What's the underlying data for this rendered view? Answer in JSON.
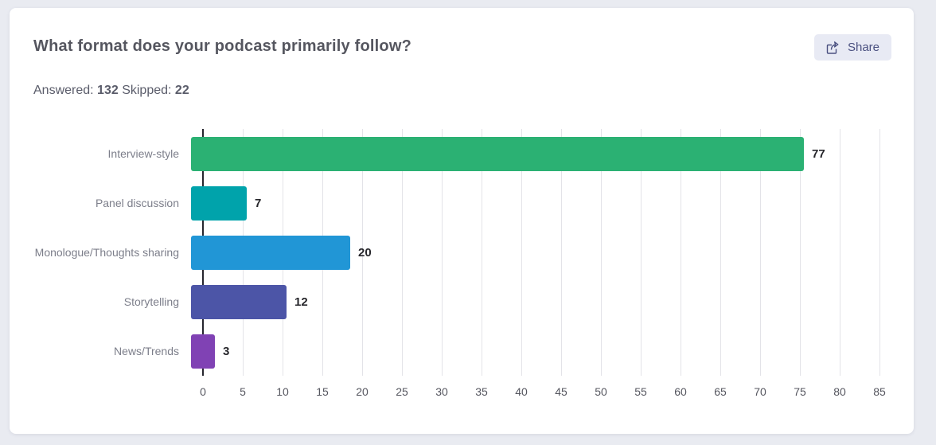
{
  "page": {
    "background_color": "#e9ebf1",
    "card_background": "#ffffff"
  },
  "header": {
    "title": "What format does your podcast primarily follow?",
    "share_label": "Share"
  },
  "stats": {
    "answered_label": "Answered:",
    "answered_value": "132",
    "skipped_label": "Skipped:",
    "skipped_value": "22"
  },
  "chart_data": {
    "type": "bar",
    "orientation": "horizontal",
    "categories": [
      "Interview-style",
      "Panel discussion",
      "Monologue/Thoughts sharing",
      "Storytelling",
      "News/Trends"
    ],
    "values": [
      77,
      7,
      20,
      12,
      3
    ],
    "bar_colors": [
      "#2bb173",
      "#00a3ab",
      "#2196d6",
      "#4c55a7",
      "#8042b4"
    ],
    "value_labels": true,
    "xlim": [
      0,
      85
    ],
    "x_ticks": [
      0,
      5,
      10,
      15,
      20,
      25,
      30,
      35,
      40,
      45,
      50,
      55,
      60,
      65,
      70,
      75,
      80,
      85
    ],
    "grid": true,
    "gridline_color": "#e3e3e8",
    "axis_color": "#26262e",
    "label_color": "#7c7e8a",
    "tick_color": "#55565f",
    "value_color": "#26262b"
  }
}
